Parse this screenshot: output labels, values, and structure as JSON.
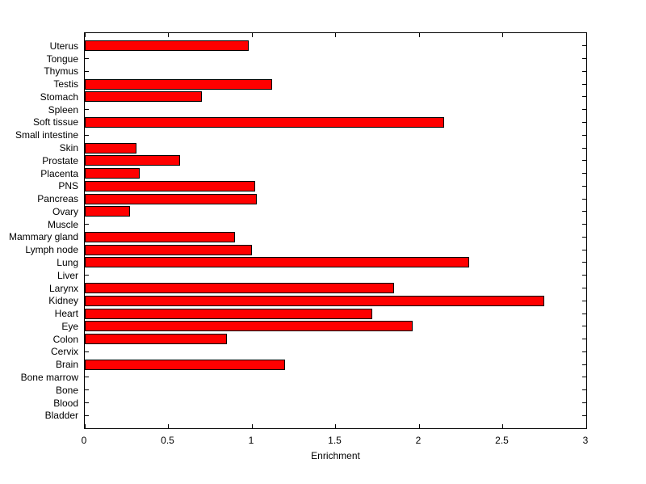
{
  "chart_data": {
    "type": "bar",
    "orientation": "horizontal",
    "title": "",
    "xlabel": "Enrichment",
    "ylabel": "",
    "xlim": [
      0,
      3
    ],
    "xticks": [
      0,
      0.5,
      1,
      1.5,
      2,
      2.5,
      3
    ],
    "xtick_labels": [
      "0",
      "0.5",
      "1",
      "1.5",
      "2",
      "2.5",
      "3"
    ],
    "grid": false,
    "legend": false,
    "bar_color": "#FF0000",
    "bar_edge_color": "#000000",
    "categories": [
      "Uterus",
      "Tongue",
      "Thymus",
      "Testis",
      "Stomach",
      "Spleen",
      "Soft tissue",
      "Small intestine",
      "Skin",
      "Prostate",
      "Placenta",
      "PNS",
      "Pancreas",
      "Ovary",
      "Muscle",
      "Mammary gland",
      "Lymph node",
      "Lung",
      "Liver",
      "Larynx",
      "Kidney",
      "Heart",
      "Eye",
      "Colon",
      "Cervix",
      "Brain",
      "Bone marrow",
      "Bone",
      "Blood",
      "Bladder"
    ],
    "values": [
      0.98,
      0,
      0,
      1.12,
      0.7,
      0,
      2.15,
      0,
      0.31,
      0.57,
      0.33,
      1.02,
      1.03,
      0.27,
      0,
      0.9,
      1.0,
      2.3,
      0,
      1.85,
      2.75,
      1.72,
      1.96,
      0.85,
      0,
      1.2,
      0,
      0,
      0,
      0
    ]
  }
}
